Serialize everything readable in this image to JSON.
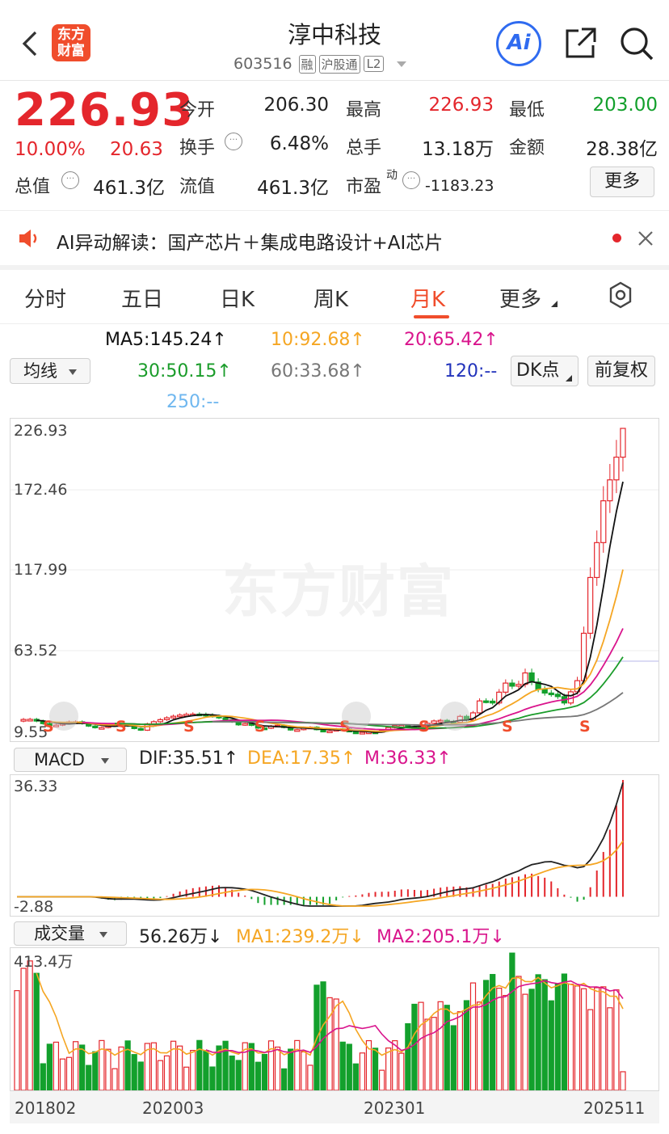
{
  "header": {
    "title": "淳中科技",
    "code": "603516",
    "badges": [
      "融",
      "沪股通",
      "L2"
    ],
    "logo": "东方财富",
    "logo_line1": "东方",
    "logo_line2": "财富",
    "ai_label": "Ai"
  },
  "quote": {
    "price": "226.93",
    "pct": "10.00%",
    "chg": "20.63",
    "fields": [
      {
        "label": "今开",
        "value": "206.30",
        "color": "#222"
      },
      {
        "label": "最高",
        "value": "226.93",
        "color": "#e4262c"
      },
      {
        "label": "最低",
        "value": "203.00",
        "color": "#13a02c"
      },
      {
        "label": "换手",
        "value": "6.48%",
        "color": "#222"
      },
      {
        "label": "总手",
        "value": "13.18万",
        "color": "#222"
      },
      {
        "label": "金额",
        "value": "28.38亿",
        "color": "#222"
      },
      {
        "label": "总值",
        "value": "461.3亿",
        "color": "#222"
      },
      {
        "label": "流值",
        "value": "461.3亿",
        "color": "#222"
      },
      {
        "label": "市盈",
        "value": "-1183.23",
        "color": "#222"
      }
    ],
    "pe_sup": "动",
    "more": "更多"
  },
  "banner": {
    "text": "AI异动解读：国产芯片＋集成电路设计+AI芯片"
  },
  "tabs": [
    {
      "label": "分时"
    },
    {
      "label": "五日"
    },
    {
      "label": "日K"
    },
    {
      "label": "周K"
    },
    {
      "label": "月K"
    },
    {
      "label": "更多"
    }
  ],
  "ma": {
    "select": "均线",
    "ma5": "MA5:145.24↑",
    "ma10": "10:92.68↑",
    "ma20": "20:65.42↑",
    "ma30": "30:50.15↑",
    "ma60": "60:33.68↑",
    "ma120": "120:--",
    "ma250": "250:--",
    "dk": "DK点",
    "adj": "前复权",
    "colors": {
      "ma5": "#111111",
      "ma10": "#f5a623",
      "ma20": "#d9148c",
      "ma30": "#1a9c2a",
      "ma60": "#777777",
      "ma120": "#2233bb",
      "ma250": "#6fb7ef"
    }
  },
  "kline": {
    "ticks": [
      "226.93",
      "172.46",
      "117.99",
      "63.52",
      "9.55"
    ],
    "watermark": "东方财富",
    "s_marker": "S"
  },
  "macd": {
    "select": "MACD",
    "dif": "DIF:35.51↑",
    "dea": "DEA:17.35↑",
    "m": "M:36.33↑",
    "ticks": [
      "36.33",
      "-2.88"
    ]
  },
  "vol": {
    "select": "成交量",
    "value": "56.26万↓",
    "ma1": "MA1:239.2万↓",
    "ma2": "MA2:205.1万↓",
    "tick": "413.4万"
  },
  "xaxis": [
    "201802",
    "202003",
    "202301",
    "202511"
  ],
  "chart_data": {
    "type": "candlestick",
    "price_ylim": [
      9.55,
      226.93
    ],
    "last_close": 226.93,
    "last_open": 206.3,
    "last_high": 226.93,
    "last_low": 203.0,
    "macd_ylim": [
      -2.88,
      36.33
    ],
    "volume_max": "413.4万"
  }
}
